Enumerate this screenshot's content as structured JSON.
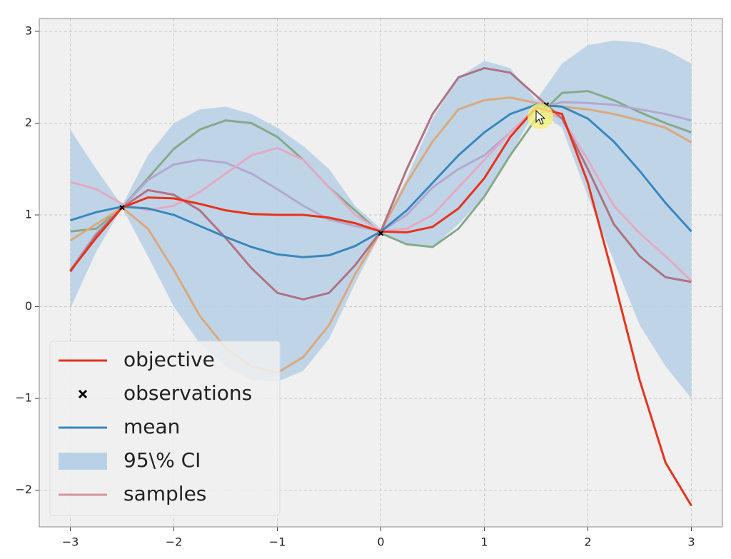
{
  "chart_data": {
    "type": "line",
    "x": [
      -3,
      -2.75,
      -2.5,
      -2.25,
      -2,
      -1.75,
      -1.5,
      -1.25,
      -1,
      -0.75,
      -0.5,
      -0.25,
      0,
      0.25,
      0.5,
      0.75,
      1,
      1.25,
      1.5,
      1.75,
      2,
      2.25,
      2.5,
      2.75,
      3
    ],
    "series": [
      {
        "name": "objective",
        "color": "#e8321a",
        "values": [
          0.39,
          0.75,
          1.08,
          1.19,
          1.18,
          1.12,
          1.05,
          1.01,
          1.0,
          1.0,
          0.97,
          0.91,
          0.82,
          0.81,
          0.87,
          1.07,
          1.4,
          1.85,
          2.17,
          2.1,
          1.35,
          0.3,
          -0.8,
          -1.7,
          -2.17
        ]
      },
      {
        "name": "mean",
        "color": "#3a87be",
        "values": [
          0.94,
          1.03,
          1.09,
          1.07,
          1.0,
          0.88,
          0.76,
          0.65,
          0.57,
          0.54,
          0.56,
          0.66,
          0.82,
          1.05,
          1.35,
          1.65,
          1.9,
          2.1,
          2.2,
          2.18,
          2.05,
          1.8,
          1.48,
          1.13,
          0.82
        ]
      }
    ],
    "ci": {
      "name": "95\\% CI",
      "color": "#b9d1e6",
      "lower": [
        -0.02,
        0.6,
        1.08,
        0.55,
        0.0,
        -0.4,
        -0.65,
        -0.8,
        -0.82,
        -0.7,
        -0.35,
        0.25,
        0.8,
        0.68,
        0.65,
        0.9,
        1.2,
        1.65,
        2.15,
        1.95,
        1.2,
        0.5,
        -0.2,
        -0.65,
        -1.0
      ],
      "upper": [
        1.93,
        1.5,
        1.1,
        1.65,
        2.0,
        2.15,
        2.18,
        2.1,
        1.95,
        1.75,
        1.5,
        1.1,
        0.85,
        1.4,
        2.05,
        2.5,
        2.68,
        2.6,
        2.25,
        2.65,
        2.85,
        2.9,
        2.88,
        2.8,
        2.65
      ]
    },
    "observations": {
      "name": "observations",
      "color": "#000000",
      "x": [
        -2.5,
        0,
        1.6
      ],
      "y": [
        1.08,
        0.8,
        2.2
      ]
    },
    "samples": {
      "name": "samples",
      "color": "#d4949c",
      "colors": [
        "#86a98a",
        "#b3a8cf",
        "#e4a9c4",
        "#dca87c",
        "#b07283"
      ],
      "lines": [
        [
          0.82,
          0.85,
          1.08,
          1.4,
          1.72,
          1.93,
          2.03,
          2.0,
          1.85,
          1.6,
          1.3,
          1.05,
          0.8,
          0.68,
          0.65,
          0.85,
          1.2,
          1.65,
          2.05,
          2.33,
          2.35,
          2.25,
          2.12,
          2.0,
          1.9
        ],
        [
          0.4,
          0.8,
          1.08,
          1.38,
          1.55,
          1.6,
          1.57,
          1.45,
          1.28,
          1.1,
          0.95,
          0.88,
          0.82,
          1.0,
          1.3,
          1.5,
          1.65,
          1.9,
          2.15,
          2.23,
          2.22,
          2.2,
          2.15,
          2.1,
          2.03
        ],
        [
          1.36,
          1.28,
          1.12,
          1.05,
          1.1,
          1.25,
          1.45,
          1.65,
          1.73,
          1.6,
          1.3,
          1.0,
          0.82,
          0.85,
          1.0,
          1.3,
          1.6,
          1.9,
          2.17,
          2.05,
          1.6,
          1.1,
          0.8,
          0.55,
          0.28
        ],
        [
          0.72,
          0.9,
          1.08,
          0.85,
          0.4,
          -0.1,
          -0.45,
          -0.65,
          -0.72,
          -0.55,
          -0.2,
          0.35,
          0.82,
          1.35,
          1.8,
          2.15,
          2.25,
          2.28,
          2.22,
          2.18,
          2.15,
          2.1,
          2.03,
          1.95,
          1.79
        ],
        [
          0.38,
          0.78,
          1.08,
          1.27,
          1.22,
          1.05,
          0.75,
          0.42,
          0.15,
          0.08,
          0.15,
          0.45,
          0.82,
          1.5,
          2.1,
          2.5,
          2.6,
          2.55,
          2.3,
          2.05,
          1.5,
          0.9,
          0.55,
          0.32,
          0.27
        ]
      ]
    },
    "xlim": [
      -3.3,
      3.3
    ],
    "ylim": [
      -2.4,
      3.14
    ],
    "xticks": [
      {
        "value": -3,
        "label": "−3"
      },
      {
        "value": -2,
        "label": "−2"
      },
      {
        "value": -1,
        "label": "−1"
      },
      0,
      1,
      2,
      3
    ],
    "yticks": [
      {
        "value": -2,
        "label": "−2"
      },
      {
        "value": -1,
        "label": "−1"
      },
      0,
      1,
      2,
      3
    ],
    "grid": true,
    "legend": "lower left"
  }
}
